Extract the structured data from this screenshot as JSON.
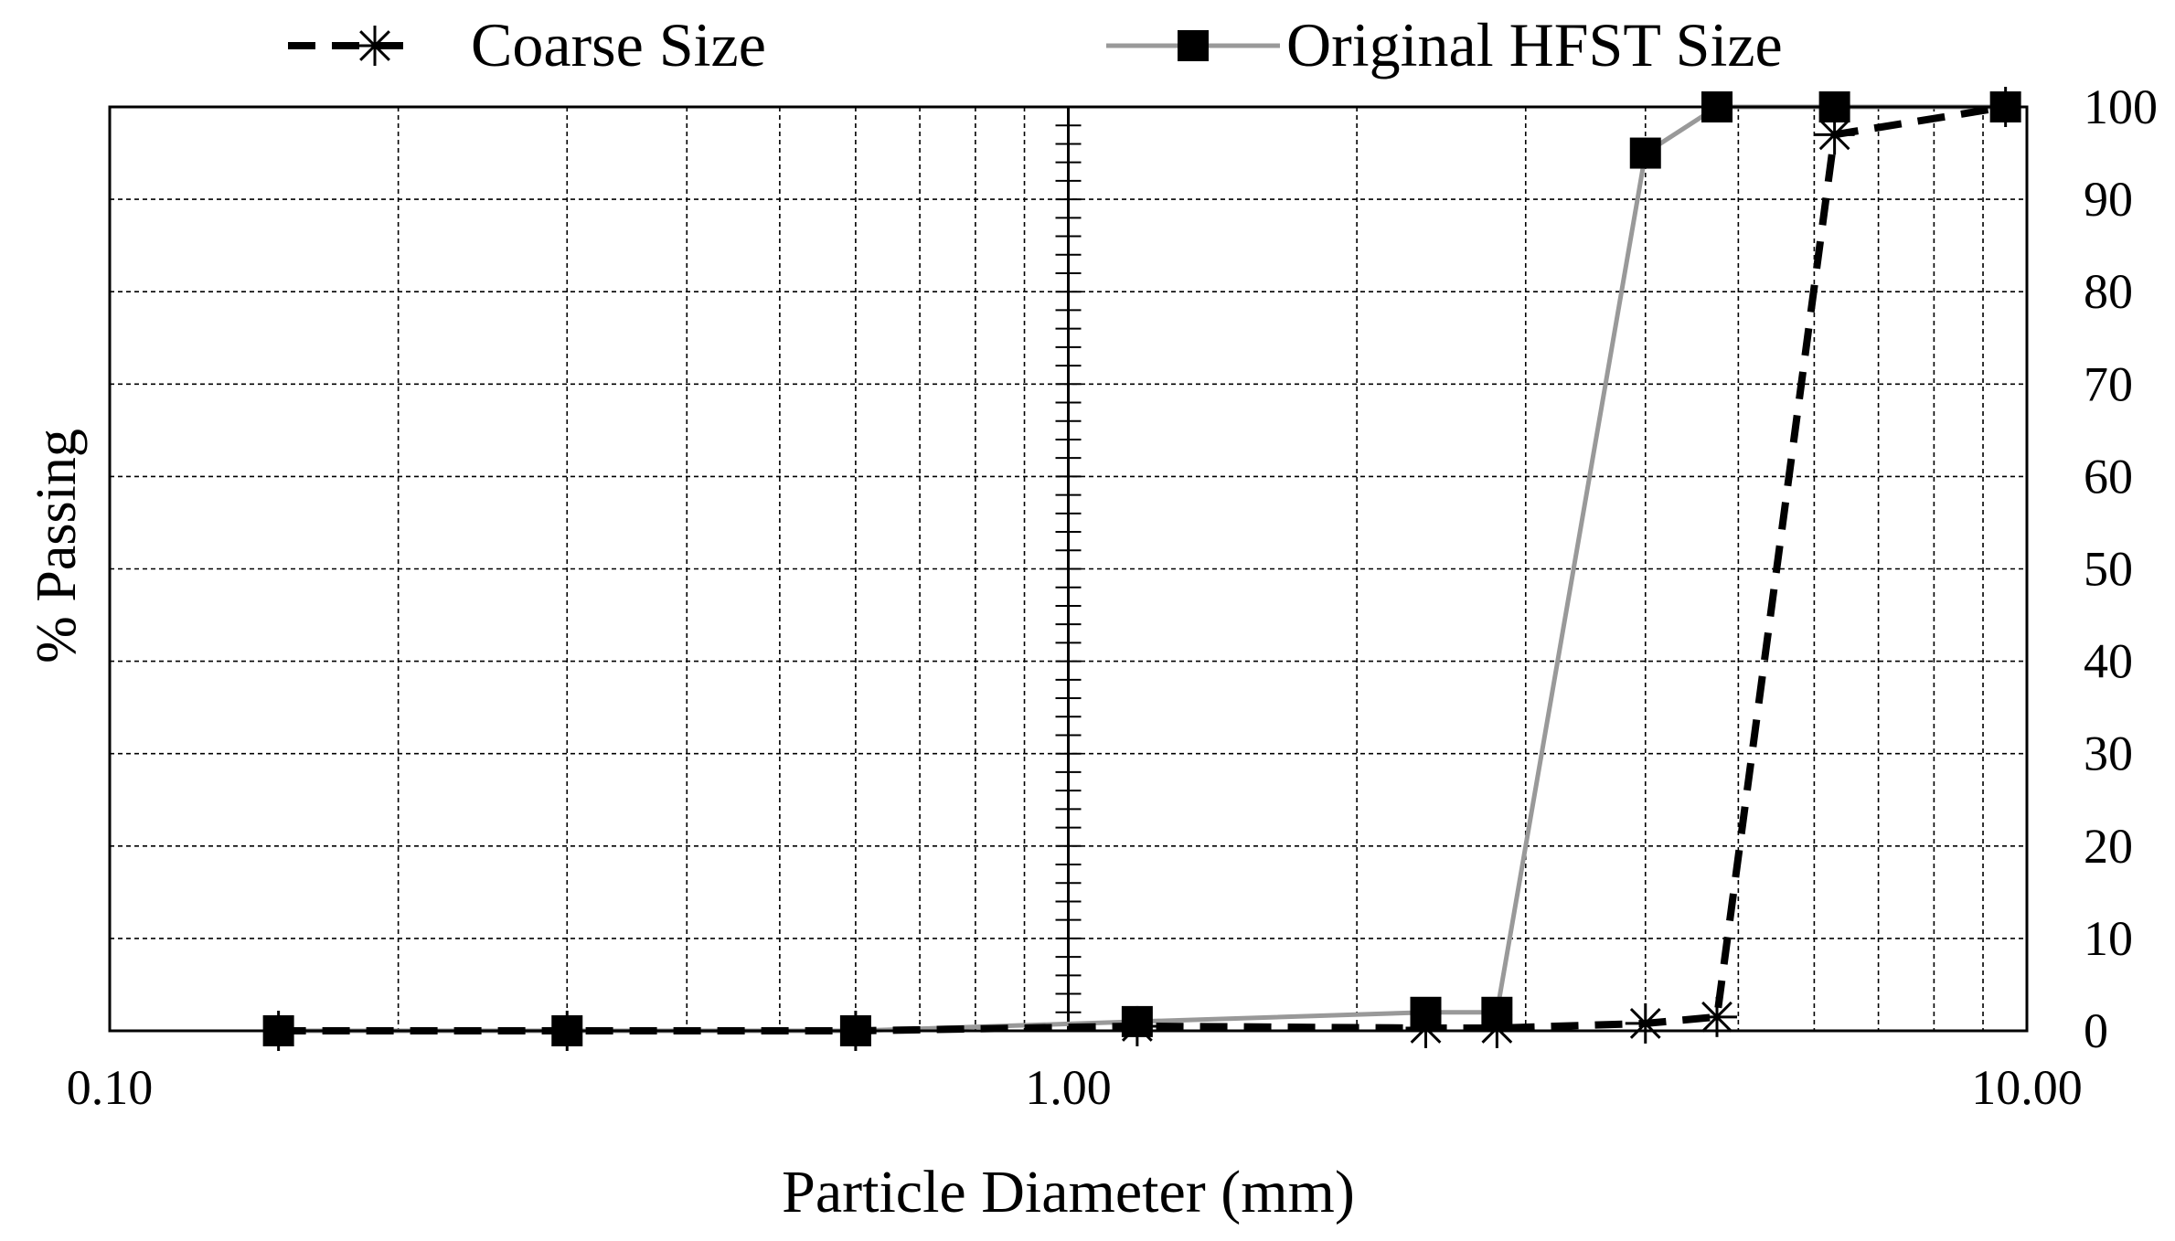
{
  "chart_data": {
    "type": "line",
    "title": "",
    "xlabel": "Particle Diameter (mm)",
    "ylabel": "% Passing",
    "x_scale": "log",
    "xlim": [
      0.1,
      10.0
    ],
    "ylim": [
      0,
      100
    ],
    "x_ticks": [
      0.1,
      1.0,
      10.0
    ],
    "x_tick_labels": [
      "0.10",
      "1.00",
      "10.00"
    ],
    "y_ticks": [
      0,
      10,
      20,
      30,
      40,
      50,
      60,
      70,
      80,
      90,
      100
    ],
    "y_tick_labels": [
      "0",
      "10",
      "20",
      "30",
      "40",
      "50",
      "60",
      "70",
      "80",
      "90",
      "100"
    ],
    "y_axis_side": "right",
    "grid": true,
    "legend_position": "top",
    "series": [
      {
        "name": "Coarse Size",
        "color": "#000000",
        "line_style": "dashed",
        "marker": "asterisk",
        "x": [
          0.15,
          0.3,
          0.6,
          1.18,
          2.36,
          2.8,
          4.0,
          4.75,
          6.3,
          9.5
        ],
        "y": [
          0,
          0,
          0,
          0.5,
          0.3,
          0.3,
          0.8,
          1.5,
          97,
          100
        ]
      },
      {
        "name": "Original HFST Size",
        "color": "#999999",
        "line_style": "solid",
        "marker": "square",
        "x": [
          0.15,
          0.3,
          0.6,
          1.18,
          2.36,
          2.8,
          4.0,
          4.75,
          6.3,
          9.5
        ],
        "y": [
          0,
          0,
          0,
          1,
          2,
          2,
          95,
          100,
          100,
          100
        ]
      }
    ]
  }
}
